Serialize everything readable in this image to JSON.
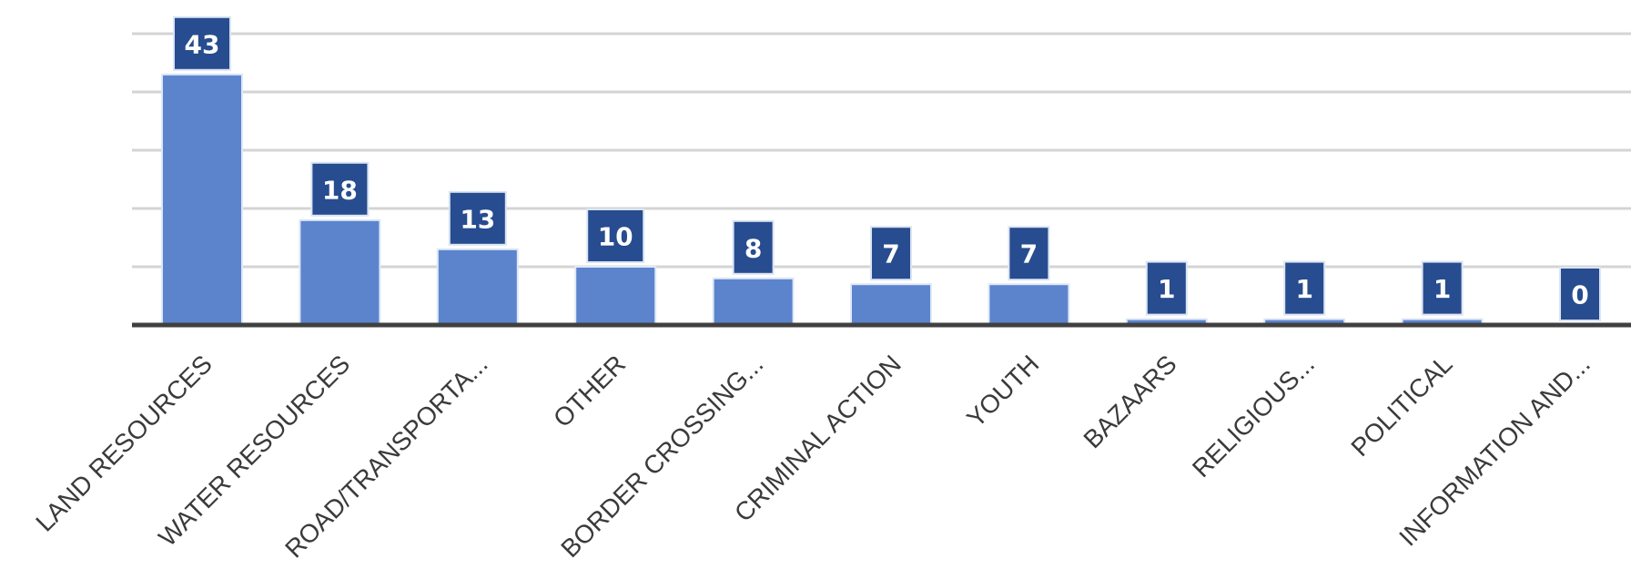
{
  "chart_data": {
    "type": "bar",
    "title": "",
    "xlabel": "",
    "ylabel": "",
    "categories": [
      "LAND RESOURCES",
      "WATER RESOURCES",
      "ROAD/TRANSPORTA...",
      "OTHER",
      "BORDER CROSSING...",
      "CRIMINAL ACTION",
      "YOUTH",
      "BAZAARS",
      "RELIGIOUS...",
      "POLITICAL",
      "INFORMATION AND..."
    ],
    "values": [
      43,
      18,
      13,
      10,
      8,
      7,
      7,
      1,
      1,
      1,
      0
    ],
    "ylim": [
      0,
      50
    ],
    "grid": true,
    "data_labels": true,
    "legend": "none",
    "colors": {
      "bar": "#5b84cd",
      "label_box": "#274c8f",
      "label_text": "#ffffff",
      "grid": "#d4d4d4",
      "axis": "#404040",
      "tick_text": "#3a3a3a"
    }
  }
}
